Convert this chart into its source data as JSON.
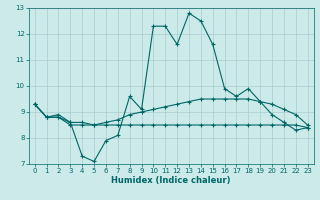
{
  "xlabel": "Humidex (Indice chaleur)",
  "ylabel": "",
  "bg_color": "#cceaea",
  "grid_color": "#aacccc",
  "line_color": "#006666",
  "xlim": [
    -0.5,
    23.5
  ],
  "ylim": [
    7,
    13
  ],
  "yticks": [
    7,
    8,
    9,
    10,
    11,
    12,
    13
  ],
  "xticks": [
    0,
    1,
    2,
    3,
    4,
    5,
    6,
    7,
    8,
    9,
    10,
    11,
    12,
    13,
    14,
    15,
    16,
    17,
    18,
    19,
    20,
    21,
    22,
    23
  ],
  "line1_x": [
    0,
    1,
    2,
    3,
    4,
    5,
    6,
    7,
    8,
    9,
    10,
    11,
    12,
    13,
    14,
    15,
    16,
    17,
    18,
    19,
    20,
    21,
    22,
    23
  ],
  "line1_y": [
    9.3,
    8.8,
    8.8,
    8.6,
    7.3,
    7.1,
    7.9,
    8.1,
    9.6,
    9.1,
    12.3,
    12.3,
    11.6,
    12.8,
    12.5,
    11.6,
    9.9,
    9.6,
    9.9,
    9.4,
    8.9,
    8.6,
    8.3,
    8.4
  ],
  "line2_x": [
    0,
    1,
    2,
    3,
    4,
    5,
    6,
    7,
    8,
    9,
    10,
    11,
    12,
    13,
    14,
    15,
    16,
    17,
    18,
    19,
    20,
    21,
    22,
    23
  ],
  "line2_y": [
    9.3,
    8.8,
    8.9,
    8.6,
    8.6,
    8.5,
    8.6,
    8.7,
    8.9,
    9.0,
    9.1,
    9.2,
    9.3,
    9.4,
    9.5,
    9.5,
    9.5,
    9.5,
    9.5,
    9.4,
    9.3,
    9.1,
    8.9,
    8.5
  ],
  "line3_x": [
    0,
    1,
    2,
    3,
    4,
    5,
    6,
    7,
    8,
    9,
    10,
    11,
    12,
    13,
    14,
    15,
    16,
    17,
    18,
    19,
    20,
    21,
    22,
    23
  ],
  "line3_y": [
    9.3,
    8.8,
    8.8,
    8.5,
    8.5,
    8.5,
    8.5,
    8.5,
    8.5,
    8.5,
    8.5,
    8.5,
    8.5,
    8.5,
    8.5,
    8.5,
    8.5,
    8.5,
    8.5,
    8.5,
    8.5,
    8.5,
    8.5,
    8.4
  ],
  "marker_size": 3,
  "linewidth": 0.8,
  "tick_fontsize": 5,
  "xlabel_fontsize": 6
}
